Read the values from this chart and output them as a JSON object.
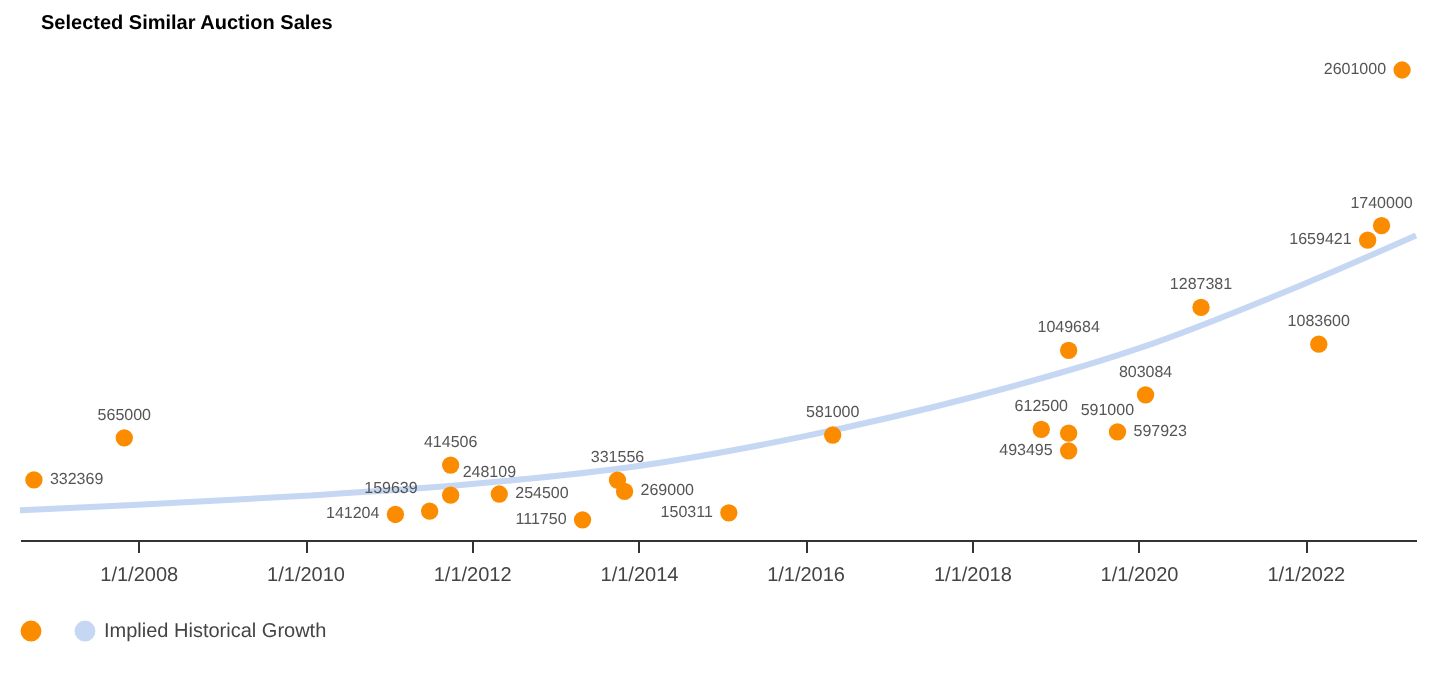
{
  "chart_data": {
    "type": "scatter",
    "title": "Selected Similar Auction Sales",
    "series": [
      {
        "color": "#fb8c00",
        "x": [
          "2006-10",
          "2007-11",
          "2011-02",
          "2011-07",
          "2011-10",
          "2011-10",
          "2012-05",
          "2013-05",
          "2013-10",
          "2013-11",
          "2015-02",
          "2016-05",
          "2018-11",
          "2019-03",
          "2019-03",
          "2019-03",
          "2019-10",
          "2020-02",
          "2020-10",
          "2022-03",
          "2022-10",
          "2022-12",
          "2023-03"
        ],
        "values": [
          332369,
          565000,
          141204,
          159639,
          248109,
          414506,
          254500,
          111750,
          331556,
          269000,
          150311,
          581000,
          612500,
          591000,
          493495,
          1049684,
          597923,
          803084,
          1287381,
          1083600,
          1659421,
          1740000,
          2601000
        ],
        "value_labels": [
          "332369",
          "565000",
          "141204",
          "159639",
          "248109",
          "414506",
          "254500",
          "111750",
          "331556",
          "269000",
          "150311",
          "581000",
          "612500",
          "591000",
          "493495",
          "1049684",
          "597923",
          "803084",
          "1287381",
          "1083600",
          "1659421",
          "1740000",
          "2601000"
        ]
      },
      {
        "type": "line",
        "name": "Implied Historical Growth",
        "color": "#c5d7f2",
        "x": [
          "2006-08",
          "2008-01",
          "2010-01",
          "2012-01",
          "2014-01",
          "2016-01",
          "2018-01",
          "2020-01",
          "2022-01",
          "2023-05"
        ],
        "values": [
          165000,
          195000,
          245000,
          310000,
          410000,
          575000,
          790000,
          1060000,
          1420000,
          1685000
        ]
      }
    ],
    "xlim": [
      "2006-08",
      "2023-05"
    ],
    "xticks": [
      {
        "value": "2008-01-01",
        "label": "1/1/2008"
      },
      {
        "value": "2010-01-01",
        "label": "1/1/2010"
      },
      {
        "value": "2012-01-01",
        "label": "1/1/2012"
      },
      {
        "value": "2014-01-01",
        "label": "1/1/2014"
      },
      {
        "value": "2016-01-01",
        "label": "1/1/2016"
      },
      {
        "value": "2018-01-01",
        "label": "1/1/2018"
      },
      {
        "value": "2020-01-01",
        "label": "1/1/2020"
      },
      {
        "value": "2022-01-01",
        "label": "1/1/2022"
      }
    ],
    "tick_labels": "x",
    "grid": false,
    "legend": "bottom"
  }
}
